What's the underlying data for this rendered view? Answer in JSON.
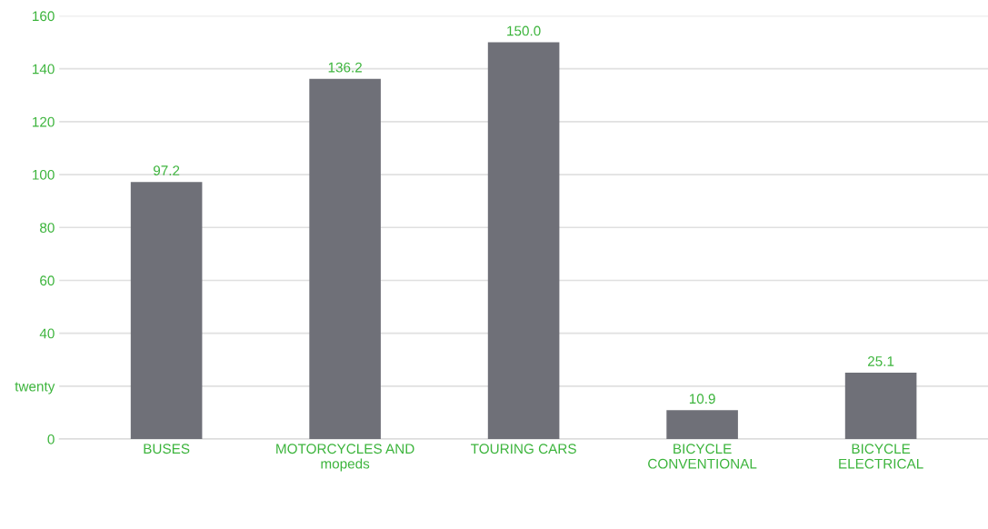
{
  "chart_data": {
    "type": "bar",
    "categories": [
      "BUSES",
      "MOTORCYCLES AND\nmopeds",
      "TOURING CARS",
      "BICYCLE\nCONVENTIONAL",
      "BICYCLE\nELECTRICAL"
    ],
    "values": [
      97.2,
      136.2,
      150.0,
      10.9,
      25.1
    ],
    "color": "#6f7078",
    "value_labels": [
      "97.2",
      "136.2",
      "150.0",
      "10.9",
      "25.1"
    ],
    "ylim": [
      0,
      160
    ],
    "yticks": [
      0,
      {
        "value": 20,
        "label": "twenty"
      },
      40,
      60,
      80,
      100,
      120,
      140,
      160
    ],
    "grid": "y"
  }
}
